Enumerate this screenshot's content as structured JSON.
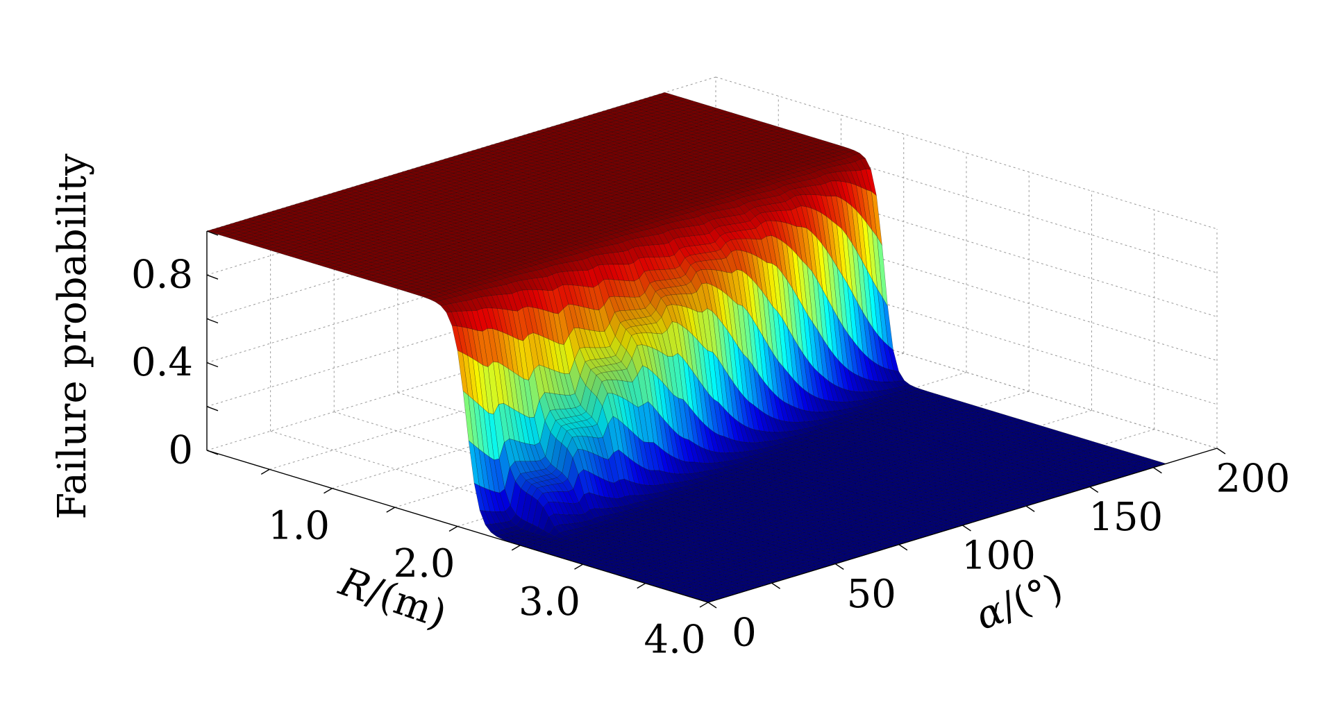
{
  "chart_data": {
    "type": "surface",
    "title": "",
    "zlabel": "Failure probability",
    "xlabel": "R/(m)",
    "ylabel": "α/(°)",
    "xlabel_parts": {
      "var": "R",
      "unit": "/(m)"
    },
    "ylabel_parts": {
      "var": "α",
      "unit": "/(°)"
    },
    "x_range": [
      0,
      4.0
    ],
    "y_range": [
      0,
      200
    ],
    "z_range": [
      0,
      1
    ],
    "x_ticks": [
      "1.0",
      "2.0",
      "3.0",
      "4.0"
    ],
    "y_ticks": [
      "0",
      "50",
      "100",
      "150",
      "200"
    ],
    "z_ticks": [
      "0",
      "0.4",
      "0.8"
    ],
    "y_surface_max": 180,
    "grid": true,
    "colormap": "jet",
    "description_of_surface": {
      "low_R_plateau_value": 1.0,
      "high_R_plateau_value": 0.0,
      "transition_R_at_alpha_0": 2.5,
      "transition_R_at_alpha_max": 1.75,
      "intermediate_plateau_heights_by_alpha_band": [
        0.0,
        0.18,
        0.37,
        0.55,
        0.68,
        0.77,
        0.84,
        0.89,
        0.93,
        0.96,
        0.98,
        1.0
      ]
    },
    "colors": {
      "jet_stops": [
        "#00008f",
        "#0000ff",
        "#0080ff",
        "#00ffff",
        "#80ff80",
        "#ffff00",
        "#ff8000",
        "#ff0000",
        "#800000"
      ]
    }
  }
}
